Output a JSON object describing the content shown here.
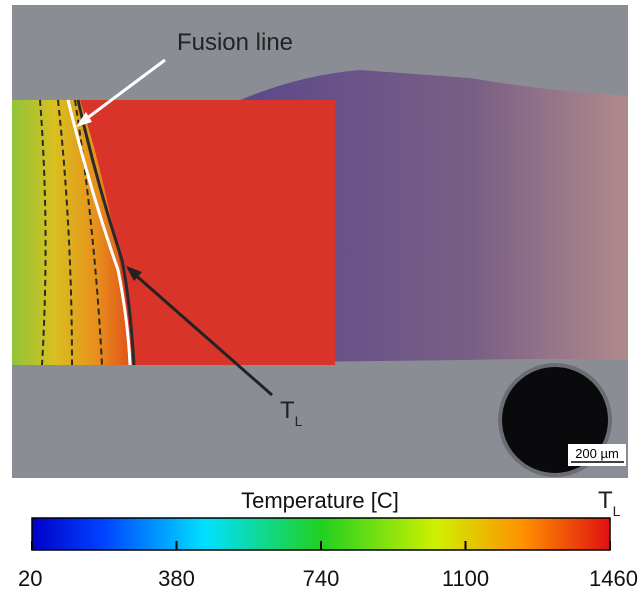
{
  "annotations": {
    "fusion_line": "Fusion line",
    "liquidus": {
      "symbol": "T",
      "subscript": "L"
    },
    "scale_bar": "200 µm"
  },
  "colorbar": {
    "label": "Temperature [C]",
    "lim": [
      20,
      1460
    ],
    "ticks": [
      20,
      380,
      740,
      1100,
      1460
    ],
    "end_marker": {
      "symbol": "T",
      "subscript": "L"
    }
  }
}
